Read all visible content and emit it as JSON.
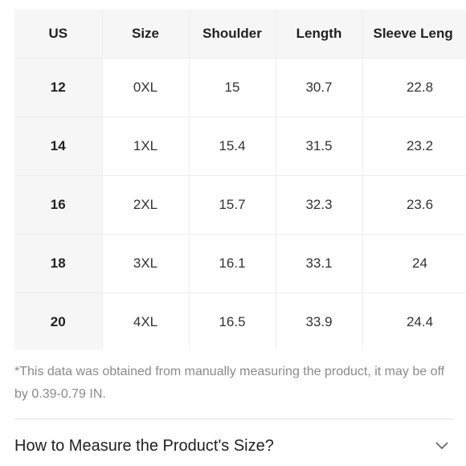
{
  "size_table": {
    "columns": [
      "US",
      "Size",
      "Shoulder",
      "Length",
      "Sleeve Leng"
    ],
    "rows": [
      {
        "us": "12",
        "size": "0XL",
        "shoulder": "15",
        "length": "30.7",
        "sleeve": "22.8"
      },
      {
        "us": "14",
        "size": "1XL",
        "shoulder": "15.4",
        "length": "31.5",
        "sleeve": "23.2"
      },
      {
        "us": "16",
        "size": "2XL",
        "shoulder": "15.7",
        "length": "32.3",
        "sleeve": "23.6"
      },
      {
        "us": "18",
        "size": "3XL",
        "shoulder": "16.1",
        "length": "33.1",
        "sleeve": "24"
      },
      {
        "us": "20",
        "size": "4XL",
        "shoulder": "16.5",
        "length": "33.9",
        "sleeve": "24.4"
      }
    ]
  },
  "note": "*This data was obtained from manually measuring the product, it may be off by 0.39-0.79 IN.",
  "measure_section": {
    "title": "How to Measure the Product's Size?",
    "icon": "chevron-down-icon",
    "expanded": false
  },
  "colors": {
    "header_bg": "#f6f6f6",
    "grid_line": "#eeeeee",
    "note_text": "#8a8a8a",
    "primary_text": "#222222"
  }
}
